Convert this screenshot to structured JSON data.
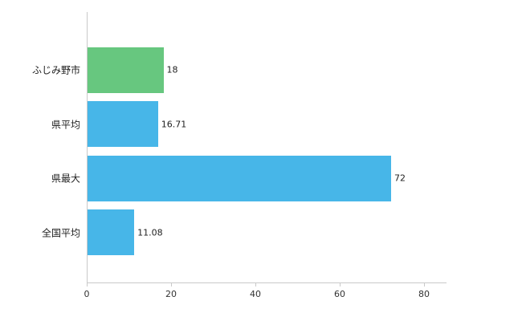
{
  "chart_data": {
    "type": "bar",
    "orientation": "horizontal",
    "title": "",
    "xlabel": "",
    "ylabel": "",
    "grid": false,
    "categories": [
      "ふじみ野市",
      "県平均",
      "県最大",
      "全国平均"
    ],
    "values": [
      18,
      16.71,
      72,
      11.08
    ],
    "value_labels": [
      "18",
      "16.71",
      "72",
      "11.08"
    ],
    "bar_colors": [
      "#67c77f",
      "#47b6e8",
      "#47b6e8",
      "#47b6e8"
    ],
    "xlim": [
      0,
      85
    ],
    "x_ticks": [
      0,
      20,
      40,
      60,
      80
    ],
    "legend": "none"
  },
  "colors": {
    "axis": "#c9c9c9",
    "text": "#222222",
    "background": "#ffffff"
  }
}
